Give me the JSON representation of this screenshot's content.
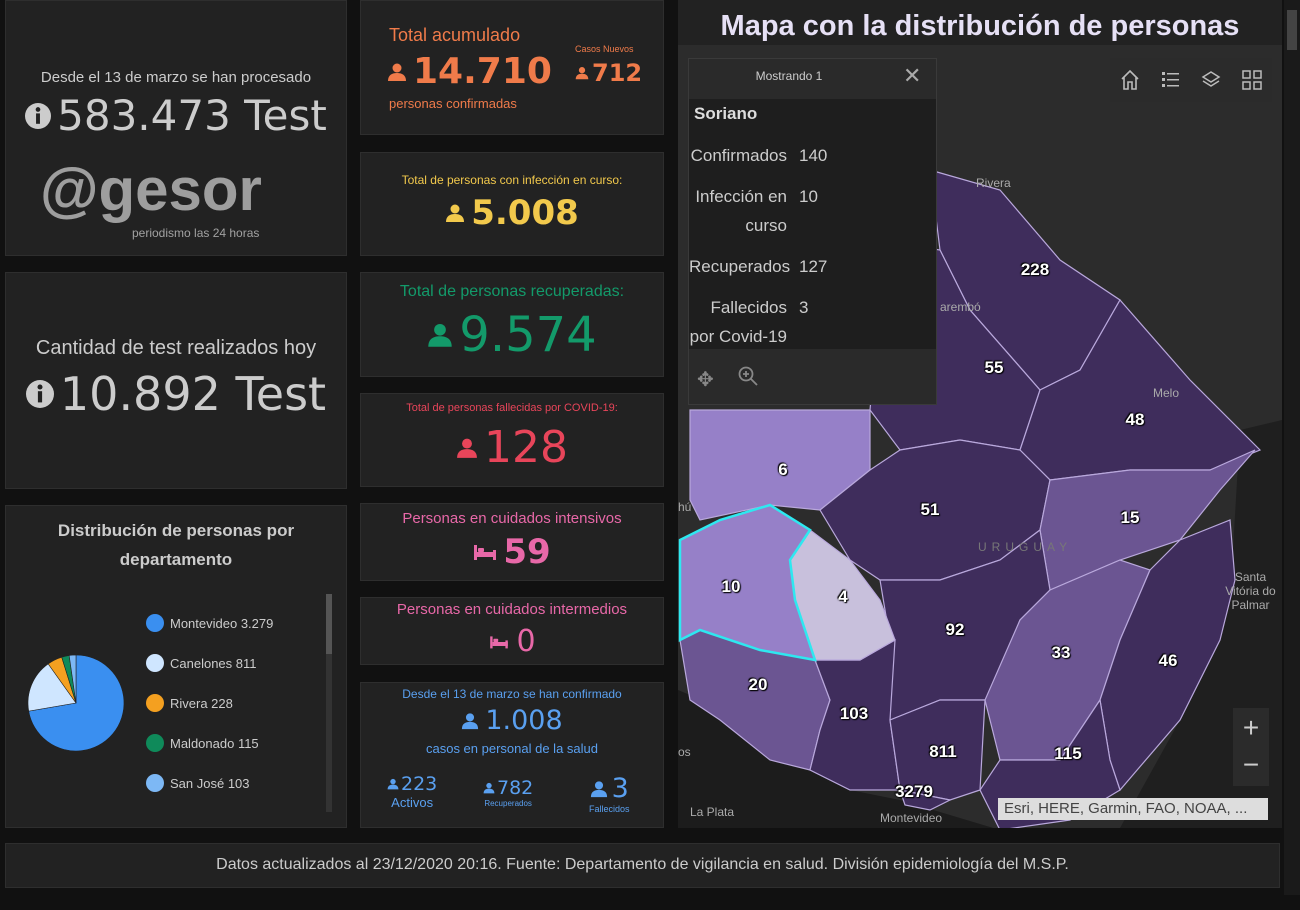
{
  "tests": {
    "since_label": "Desde el 13 de marzo se han procesado",
    "total": "583.473 Test",
    "today_label": "Cantidad de test realizados hoy",
    "today": "10.892 Test"
  },
  "pie": {
    "title": "Distribución de personas por departamento"
  },
  "chart_data": {
    "type": "pie",
    "title": "Distribución de personas por departamento",
    "slices": [
      {
        "label": "Montevideo",
        "display": "3.279",
        "value": 3279,
        "color": "#3a8ff0"
      },
      {
        "label": "Canelones",
        "display": "811",
        "value": 811,
        "color": "#cfe6ff"
      },
      {
        "label": "Rivera",
        "display": "228",
        "value": 228,
        "color": "#f4a020"
      },
      {
        "label": "Maldonado",
        "display": "115",
        "value": 115,
        "color": "#0f8a5a"
      },
      {
        "label": "San José",
        "display": "103",
        "value": 103,
        "color": "#7db8f5"
      }
    ],
    "legend": "right"
  },
  "kpis": {
    "total": {
      "label": "Total acumulado",
      "value": "14.710",
      "sub": "personas confirmadas",
      "new_label": "Casos Nuevos",
      "new_value": "712",
      "color": "#f07b4a"
    },
    "active": {
      "label": "Total de personas con infección en curso:",
      "value": "5.008",
      "color": "#f2c94c"
    },
    "recovered": {
      "label": "Total de personas recuperadas:",
      "value": "9.574",
      "color": "#139a6a"
    },
    "deaths": {
      "label": "Total de personas fallecidas por COVID-19:",
      "value": "128",
      "color": "#e8455a"
    },
    "icu": {
      "label": "Personas en cuidados intensivos",
      "value": "59",
      "color": "#e868a8"
    },
    "intermediate": {
      "label": "Personas en cuidados intermedios",
      "value": "0",
      "color": "#e868a8"
    },
    "health": {
      "label": "Desde el 13 de marzo se han confirmado",
      "value": "1.008",
      "sub": "casos en personal de la salud",
      "active": "223",
      "active_label": "Activos",
      "recovered": "782",
      "recovered_label": "Recuperados",
      "deaths": "3",
      "deaths_label": "Fallecidos",
      "color": "#5aa0f0"
    }
  },
  "map": {
    "title": "Mapa con la distribución de personas",
    "popup": {
      "header": "Mostrando 1",
      "name": "Soriano",
      "fields": [
        {
          "k": "Confirmados",
          "v": "140"
        },
        {
          "k": "Infección en curso",
          "v": "10"
        },
        {
          "k": "Recuperados",
          "v": "127"
        },
        {
          "k": "Fallecidos por Covid-19",
          "v": "3"
        }
      ]
    },
    "labels": [
      "228",
      "55",
      "48",
      "6",
      "51",
      "15",
      "10",
      "4",
      "92",
      "33",
      "46",
      "20",
      "103",
      "811",
      "115",
      "3279"
    ],
    "cities": [
      "Rivera",
      "arembó",
      "Melo",
      "URUGUAY",
      "Santa Vitória do Palmar",
      "La Plata",
      "Montevideo",
      "hú",
      "os"
    ],
    "attribution": "Esri, HERE, Garmin, FAO, NOAA, ...",
    "zoom_in": "+",
    "zoom_out": "−"
  },
  "watermark": {
    "brand": "@gesor",
    "tagline": "periodismo las 24 horas"
  },
  "footer": "Datos actualizados al 23/12/2020 20:16. Fuente: Departamento de vigilancia en salud. División epidemiología del M.S.P."
}
